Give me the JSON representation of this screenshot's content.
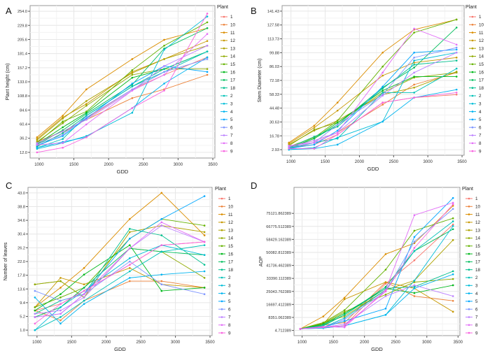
{
  "legend_title": "Plant",
  "series_names": [
    "1",
    "10",
    "11",
    "12",
    "13",
    "14",
    "15",
    "16",
    "17",
    "18",
    "2",
    "3",
    "4",
    "5",
    "6",
    "7",
    "8",
    "9"
  ],
  "colors": [
    "#F8766D",
    "#EC8239",
    "#DB8E00",
    "#C79800",
    "#AEA200",
    "#8FAA00",
    "#64B200",
    "#00B81B",
    "#00BD5C",
    "#00C08E",
    "#00C1B7",
    "#00BDD7",
    "#00B4EF",
    "#00A7FF",
    "#7F96FF",
    "#BC81FF",
    "#E26EF7",
    "#F863DF"
  ],
  "chart_data": [
    {
      "type": "line",
      "panel_label": "A",
      "xlabel": "GDD",
      "ylabel": "Plant height (cm)",
      "x": [
        970,
        1340,
        1680,
        2340,
        2800,
        3420
      ],
      "xticks": [
        1000,
        1500,
        2000,
        2500,
        3000,
        3500
      ],
      "xlim": [
        870,
        3530
      ],
      "yticks": [
        "12.0",
        "36.2",
        "60.4",
        "84.6",
        "108.8",
        "133.0",
        "157.2",
        "181.4",
        "205.6",
        "229.8",
        "254.0"
      ],
      "ylim": [
        12,
        254
      ],
      "grid": true,
      "legend": "right",
      "series": [
        [
          22,
          45,
          70,
          120,
          145,
          175
        ],
        [
          30,
          48,
          68,
          105,
          120,
          145
        ],
        [
          38,
          75,
          120,
          172,
          205,
          225
        ],
        [
          35,
          72,
          95,
          150,
          172,
          203
        ],
        [
          33,
          70,
          100,
          148,
          172,
          195
        ],
        [
          30,
          62,
          92,
          145,
          155,
          155
        ],
        [
          28,
          65,
          82,
          153,
          195,
          235
        ],
        [
          26,
          55,
          80,
          140,
          155,
          185
        ],
        [
          25,
          50,
          78,
          128,
          190,
          225
        ],
        [
          22,
          45,
          75,
          125,
          155,
          185
        ],
        [
          20,
          35,
          75,
          125,
          150,
          185
        ],
        [
          18,
          28,
          40,
          80,
          188,
          245
        ],
        [
          20,
          30,
          38,
          88,
          130,
          175
        ],
        [
          24,
          40,
          70,
          130,
          160,
          150
        ],
        [
          26,
          42,
          72,
          120,
          150,
          172
        ],
        [
          28,
          48,
          68,
          118,
          160,
          195
        ],
        [
          25,
          28,
          60,
          118,
          145,
          215
        ],
        [
          12,
          20,
          38,
          88,
          118,
          250
        ]
      ]
    },
    {
      "type": "line",
      "panel_label": "B",
      "xlabel": "GDD",
      "ylabel": "Stem Diameter (cm)",
      "x": [
        970,
        1340,
        1680,
        2340,
        2800,
        3420
      ],
      "xticks": [
        1000,
        1500,
        2000,
        2500,
        3000,
        3500
      ],
      "xlim": [
        870,
        3530
      ],
      "yticks": [
        "2.93",
        "16.78",
        "30.63",
        "44.48",
        "58.33",
        "72.18",
        "86.03",
        "99.88",
        "113.73",
        "127.58",
        "141.43"
      ],
      "ylim": [
        2.93,
        141.43
      ],
      "grid": true,
      "legend": "right",
      "series": [
        [
          5,
          8,
          18,
          50,
          55,
          58
        ],
        [
          6,
          12,
          20,
          48,
          68,
          80
        ],
        [
          10,
          27,
          50,
          100,
          123,
          133
        ],
        [
          9,
          25,
          42,
          77,
          90,
          95
        ],
        [
          8,
          22,
          32,
          58,
          65,
          81
        ],
        [
          7,
          23,
          30,
          60,
          75,
          80
        ],
        [
          6,
          15,
          32,
          86,
          120,
          133
        ],
        [
          5,
          14,
          30,
          62,
          76,
          76
        ],
        [
          4,
          14,
          28,
          65,
          85,
          125
        ],
        [
          5,
          16,
          26,
          64,
          88,
          92
        ],
        [
          4,
          10,
          14,
          60,
          60,
          84
        ],
        [
          3,
          5,
          15,
          31,
          92,
          100
        ],
        [
          3,
          4,
          8,
          31,
          55,
          63
        ],
        [
          4,
          8,
          22,
          66,
          100,
          103
        ],
        [
          5,
          10,
          28,
          58,
          95,
          105
        ],
        [
          6,
          12,
          20,
          57,
          80,
          100
        ],
        [
          7,
          10,
          20,
          80,
          124,
          108
        ],
        [
          4,
          4,
          18,
          50,
          55,
          60
        ]
      ]
    },
    {
      "type": "line",
      "panel_label": "C",
      "xlabel": "GDD",
      "ylabel": "Number of leaves",
      "x": [
        970,
        1340,
        1680,
        2340,
        2800,
        3420
      ],
      "xticks": [
        1000,
        1500,
        2000,
        2500,
        3000,
        3500
      ],
      "xlim": [
        870,
        3530
      ],
      "yticks": [
        "1.0",
        "5.2",
        "9.4",
        "13.6",
        "17.8",
        "22.0",
        "26.2",
        "30.4",
        "34.6",
        "38.8",
        "43.0"
      ],
      "ylim": [
        1,
        43
      ],
      "grid": true,
      "legend": "right",
      "series": [
        [
          7,
          9,
          13,
          21,
          27,
          28
        ],
        [
          7,
          4,
          10,
          16,
          16,
          14
        ],
        [
          8,
          14,
          20,
          35,
          43,
          30
        ],
        [
          8,
          17,
          15,
          20,
          15,
          14
        ],
        [
          15,
          16,
          11,
          31,
          33,
          31
        ],
        [
          15,
          16,
          11,
          26,
          25,
          17
        ],
        [
          8,
          11,
          14,
          29,
          35,
          33
        ],
        [
          7,
          12,
          18,
          27,
          13,
          14
        ],
        [
          5,
          8,
          14,
          26,
          25,
          24
        ],
        [
          6,
          10,
          12,
          32,
          30,
          21
        ],
        [
          1,
          5,
          10,
          19,
          25,
          27
        ],
        [
          1,
          8,
          13,
          23,
          27,
          24
        ],
        [
          11,
          3,
          9,
          17,
          18,
          19
        ],
        [
          5,
          6,
          12,
          29,
          35,
          42
        ],
        [
          13,
          10,
          12,
          22,
          15,
          12
        ],
        [
          6,
          7,
          11,
          26,
          33,
          28
        ],
        [
          5,
          6,
          12,
          26,
          34,
          28
        ],
        [
          3,
          9,
          13,
          21,
          27,
          28
        ]
      ]
    },
    {
      "type": "line",
      "panel_label": "D",
      "xlabel": "GDD",
      "ylabel": "AOP",
      "x": [
        970,
        1340,
        1680,
        2340,
        2800,
        3420
      ],
      "xticks": [
        1000,
        1500,
        2000,
        2500,
        3000,
        3500
      ],
      "xlim": [
        870,
        3530
      ],
      "yticks": [
        "4.712389",
        "8351.062389",
        "16697.412389",
        "25043.762389",
        "33390.112389",
        "41736.462389",
        "50082.812389",
        "58429.162389",
        "66775.512389",
        "75121.862389"
      ],
      "ylim": [
        4.712389,
        83468
      ],
      "grid": true,
      "legend": "right",
      "series": [
        [
          1000,
          2000,
          3000,
          30000,
          45000,
          68000
        ],
        [
          1000,
          3500,
          5000,
          31000,
          22000,
          19000
        ],
        [
          1000,
          9000,
          21000,
          49000,
          56000,
          80000
        ],
        [
          1000,
          4000,
          20000,
          31000,
          27000,
          12000
        ],
        [
          1000,
          5000,
          9000,
          26000,
          32000,
          58000
        ],
        [
          1000,
          4500,
          12000,
          23000,
          31000,
          33000
        ],
        [
          1000,
          5000,
          13000,
          39000,
          64000,
          72000
        ],
        [
          1000,
          4000,
          11000,
          27000,
          24000,
          29000
        ],
        [
          1000,
          3000,
          10000,
          28000,
          51000,
          65000
        ],
        [
          1000,
          3500,
          10000,
          27000,
          28000,
          38000
        ],
        [
          1000,
          2000,
          8000,
          26000,
          51000,
          70000
        ],
        [
          1000,
          1500,
          3000,
          10000,
          32000,
          67000
        ],
        [
          1000,
          1500,
          3000,
          10000,
          27000,
          36000
        ],
        [
          1000,
          2000,
          6000,
          14000,
          60000,
          85000
        ],
        [
          1000,
          2000,
          7000,
          25000,
          57000,
          78000
        ],
        [
          1000,
          2000,
          4000,
          22000,
          29000,
          22000
        ],
        [
          1000,
          2500,
          2000,
          26000,
          74000,
          82000
        ],
        [
          1000,
          2000,
          3000,
          25000,
          53000,
          81000
        ]
      ]
    }
  ]
}
